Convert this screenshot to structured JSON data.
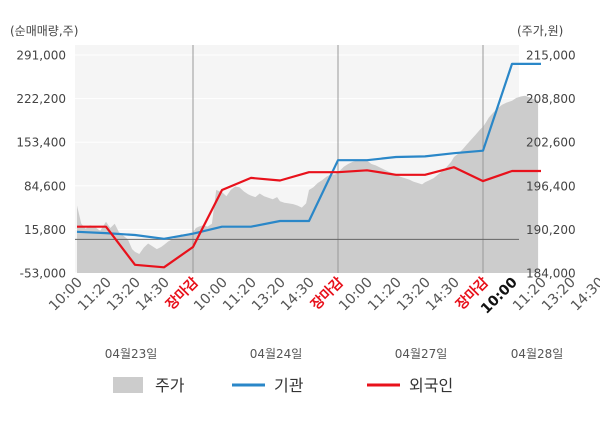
{
  "chart_data": {
    "type": "line",
    "left_axis_unit": "(순매매량,주)",
    "right_axis_unit": "(주가,원)",
    "left_axis_ticks": [
      "291,000",
      "222,200",
      "153,400",
      "84,600",
      "15,800",
      "-53,000"
    ],
    "right_axis_ticks": [
      "215,000",
      "208,800",
      "202,600",
      "196,400",
      "190,200",
      "184,000"
    ],
    "ylim_left": [
      -53000,
      291000
    ],
    "ylim_right": [
      184000,
      215000
    ],
    "x_tick_labels": [
      "10:00",
      "11:20",
      "13:20",
      "14:30",
      "장마감",
      "10:00",
      "11:20",
      "13:20",
      "14:30",
      "장마감",
      "10:00",
      "11:20",
      "13:20",
      "14:30",
      "장마감",
      "10:00",
      "11:20",
      "13:20",
      "14:30"
    ],
    "x_close_index": [
      4,
      9,
      14
    ],
    "x_current_index": 15,
    "day_labels": [
      {
        "label": "04월23일",
        "tick_index": 2
      },
      {
        "label": "04월24일",
        "tick_index": 7
      },
      {
        "label": "04월27일",
        "tick_index": 12
      },
      {
        "label": "04월28일",
        "tick_index": 16
      }
    ],
    "series": [
      {
        "name": "주가",
        "axis": "right",
        "kind": "area",
        "color": "#cccccc",
        "x": [
          0.0,
          0.15,
          0.3,
          0.45,
          0.6,
          0.8,
          1.0,
          1.15,
          1.3,
          1.45,
          1.6,
          1.75,
          1.9,
          2.0,
          2.15,
          2.3,
          2.45,
          2.6,
          2.75,
          2.9,
          3.0,
          3.15,
          3.3,
          3.45,
          3.6,
          3.75,
          3.9,
          4.0,
          4.1,
          4.2,
          4.35,
          4.5,
          4.65,
          4.8,
          5.0,
          5.15,
          5.3,
          5.45,
          5.6,
          5.75,
          5.9,
          6.0,
          6.15,
          6.3,
          6.45,
          6.6,
          6.75,
          6.9,
          7.0,
          7.15,
          7.3,
          7.45,
          7.6,
          7.75,
          7.9,
          8.0,
          8.15,
          8.3,
          8.45,
          8.6,
          8.75,
          8.9,
          9.0,
          9.1,
          9.2,
          9.35,
          9.5,
          9.65,
          9.8,
          10.0,
          10.15,
          10.3,
          10.45,
          10.6,
          10.75,
          10.9,
          11.0,
          11.15,
          11.3,
          11.45,
          11.6,
          11.75,
          11.9,
          12.0,
          12.15,
          12.3,
          12.45,
          12.6,
          12.75,
          12.9,
          13.0,
          13.15,
          13.3,
          13.45,
          13.6,
          13.75,
          13.9,
          14.0,
          14.1,
          14.2,
          14.35,
          14.5,
          14.65,
          14.8,
          15.0,
          15.15,
          15.3,
          15.45,
          15.6,
          15.75,
          15.9
        ],
        "values": [
          193600,
          191000,
          190300,
          190800,
          190600,
          190000,
          191300,
          190400,
          191000,
          189800,
          189300,
          188800,
          187400,
          187000,
          186700,
          187600,
          188200,
          187800,
          187400,
          187700,
          188000,
          188500,
          188800,
          189200,
          189500,
          189300,
          189700,
          189800,
          190400,
          190600,
          190800,
          190600,
          191000,
          195800,
          195500,
          194900,
          195800,
          196300,
          196200,
          195600,
          195200,
          195000,
          194800,
          195300,
          194900,
          194700,
          194500,
          194800,
          194200,
          194000,
          193900,
          193800,
          193600,
          193300,
          193900,
          195800,
          196200,
          196800,
          197200,
          197700,
          198000,
          198000,
          198400,
          198700,
          199100,
          199500,
          199800,
          200000,
          200100,
          200000,
          199500,
          199300,
          199000,
          198700,
          198400,
          198200,
          198000,
          197700,
          197500,
          197300,
          197000,
          196800,
          196600,
          196900,
          197200,
          197500,
          198000,
          198500,
          199100,
          199800,
          200500,
          201000,
          201600,
          202300,
          203000,
          203700,
          204400,
          204800,
          205400,
          206100,
          206800,
          207400,
          207900,
          208200,
          208500,
          208900,
          209100,
          209200,
          209000,
          208700,
          208500
        ]
      },
      {
        "name": "기관",
        "axis": "left",
        "kind": "line",
        "color": "#2a87c8",
        "x": [
          0.0,
          1.0,
          2.0,
          3.0,
          4.0,
          5.0,
          6.0,
          7.0,
          8.0,
          9.0,
          10.0,
          11.0,
          12.0,
          13.0,
          14.0,
          15.0,
          16.0
        ],
        "values": [
          12000,
          10000,
          7000,
          1000,
          9000,
          20000,
          20000,
          29000,
          29000,
          125000,
          125000,
          130000,
          131000,
          136000,
          140000,
          277000,
          277000
        ]
      },
      {
        "name": "외국인",
        "axis": "left",
        "kind": "line",
        "color": "#e8111b",
        "x": [
          0.0,
          1.0,
          2.0,
          3.0,
          4.0,
          5.0,
          6.0,
          7.0,
          8.0,
          9.0,
          10.0,
          11.0,
          12.0,
          13.0,
          14.0,
          15.0,
          16.0
        ],
        "values": [
          20000,
          20000,
          -40000,
          -44000,
          -12000,
          78000,
          97000,
          93000,
          106000,
          106000,
          109000,
          102000,
          102000,
          114000,
          92000,
          108000,
          108000
        ]
      }
    ]
  },
  "legend": [
    {
      "name": "주가",
      "color": "#cccccc",
      "kind": "area"
    },
    {
      "name": "기관",
      "color": "#2a87c8",
      "kind": "line"
    },
    {
      "name": "외국인",
      "color": "#e8111b",
      "kind": "line"
    }
  ],
  "colors": {
    "plot_background": "#f5f5f5",
    "gridline": "#ffffff",
    "axis_text": "#444444",
    "close_label": "#e8111b",
    "day_label": "#555555"
  }
}
